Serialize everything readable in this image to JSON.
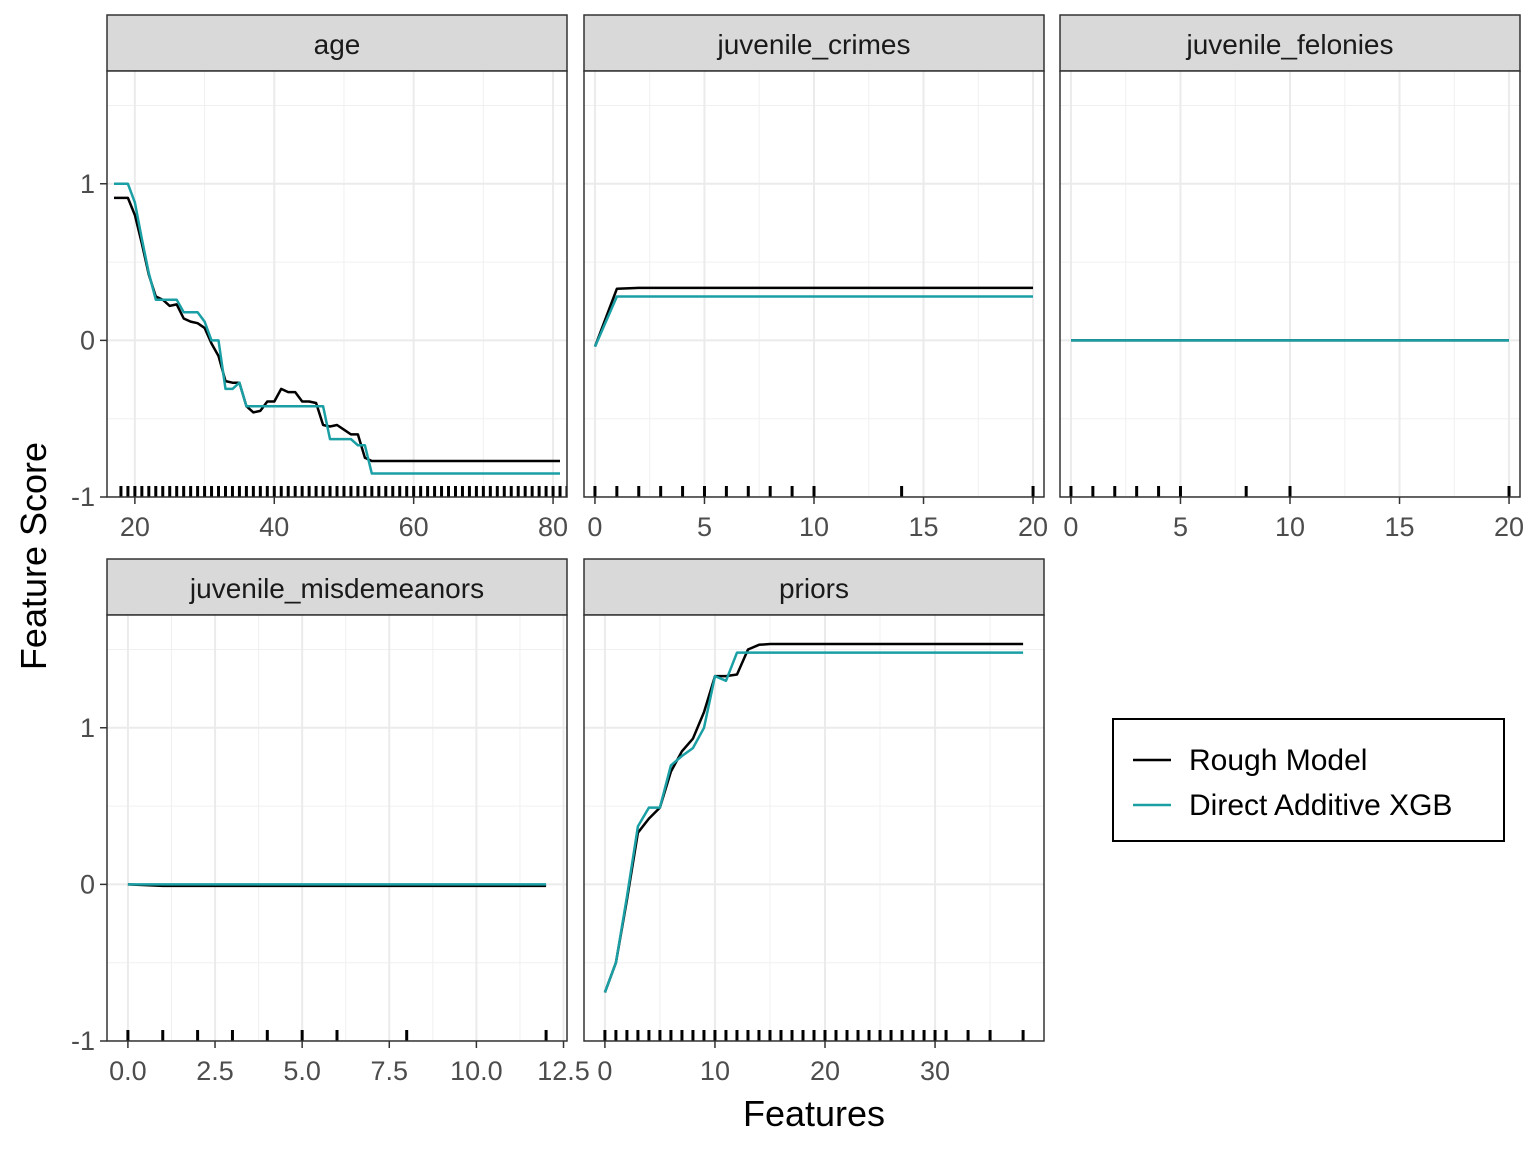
{
  "chart_data": {
    "type": "line",
    "ylabel": "Feature Score",
    "xlabel": "Features",
    "ylim": [
      -1,
      1.72
    ],
    "grid": true,
    "legend": {
      "placement": "right",
      "entries": [
        {
          "name": "Rough Model",
          "color": "#000000"
        },
        {
          "name": "Direct Additive XGB",
          "color": "#1a9fa5"
        }
      ]
    },
    "y_ticks": [
      {
        "value": -1,
        "label": "-1"
      },
      {
        "value": 0,
        "label": "0"
      },
      {
        "value": 1,
        "label": "1"
      }
    ],
    "panels": [
      {
        "title": "age",
        "xlim": [
          16,
          82
        ],
        "x_ticks": [
          {
            "value": 20,
            "label": "20"
          },
          {
            "value": 40,
            "label": "40"
          },
          {
            "value": 60,
            "label": "60"
          },
          {
            "value": 80,
            "label": "80"
          }
        ],
        "rug": [
          18,
          19,
          20,
          21,
          22,
          23,
          24,
          25,
          26,
          27,
          28,
          29,
          30,
          31,
          32,
          33,
          34,
          35,
          36,
          37,
          38,
          39,
          40,
          41,
          42,
          43,
          44,
          45,
          46,
          47,
          48,
          49,
          50,
          51,
          52,
          53,
          54,
          55,
          56,
          57,
          58,
          59,
          60,
          61,
          62,
          63,
          64,
          65,
          66,
          67,
          68,
          69,
          70,
          71,
          72,
          73,
          74,
          75,
          76,
          77,
          78,
          79,
          80,
          81,
          82
        ],
        "series": [
          {
            "name": "Rough Model",
            "x": [
              17,
              19,
              20,
              21,
              22,
              23,
              24,
              25,
              26,
              27,
              28,
              29,
              30,
              31,
              32,
              33,
              34,
              35,
              36,
              37,
              38,
              39,
              40,
              41,
              42,
              43,
              44,
              45,
              46,
              47,
              48,
              49,
              50,
              51,
              52,
              53,
              54,
              55,
              56,
              60,
              70,
              81
            ],
            "y": [
              0.91,
              0.91,
              0.8,
              0.62,
              0.42,
              0.28,
              0.26,
              0.22,
              0.23,
              0.14,
              0.12,
              0.11,
              0.08,
              -0.02,
              -0.1,
              -0.26,
              -0.27,
              -0.27,
              -0.42,
              -0.46,
              -0.45,
              -0.39,
              -0.39,
              -0.31,
              -0.33,
              -0.33,
              -0.39,
              -0.39,
              -0.4,
              -0.54,
              -0.55,
              -0.54,
              -0.57,
              -0.6,
              -0.6,
              -0.75,
              -0.77,
              -0.77,
              -0.77,
              -0.77,
              -0.77,
              -0.77
            ]
          },
          {
            "name": "Direct Additive XGB",
            "x": [
              17,
              19,
              20,
              21,
              22,
              23,
              24,
              25,
              26,
              27,
              28,
              29,
              30,
              31,
              32,
              33,
              34,
              35,
              36,
              37,
              38,
              39,
              40,
              41,
              42,
              43,
              44,
              45,
              46,
              47,
              48,
              49,
              50,
              51,
              52,
              53,
              54,
              55,
              60,
              70,
              81
            ],
            "y": [
              1.0,
              1.0,
              0.88,
              0.65,
              0.43,
              0.26,
              0.26,
              0.26,
              0.26,
              0.18,
              0.18,
              0.18,
              0.12,
              0.0,
              0.0,
              -0.31,
              -0.31,
              -0.27,
              -0.42,
              -0.42,
              -0.42,
              -0.42,
              -0.42,
              -0.42,
              -0.42,
              -0.42,
              -0.42,
              -0.42,
              -0.42,
              -0.42,
              -0.63,
              -0.63,
              -0.63,
              -0.63,
              -0.67,
              -0.67,
              -0.85,
              -0.85,
              -0.85,
              -0.85,
              -0.85
            ]
          }
        ]
      },
      {
        "title": "juvenile_crimes",
        "xlim": [
          -0.5,
          20.5
        ],
        "x_ticks": [
          {
            "value": 0,
            "label": "0"
          },
          {
            "value": 5,
            "label": "5"
          },
          {
            "value": 10,
            "label": "10"
          },
          {
            "value": 15,
            "label": "15"
          },
          {
            "value": 20,
            "label": "20"
          }
        ],
        "rug": [
          0,
          1,
          2,
          3,
          4,
          5,
          6,
          7,
          8,
          9,
          10,
          14,
          20
        ],
        "series": [
          {
            "name": "Rough Model",
            "x": [
              0,
              1,
              2,
              5,
              10,
              20
            ],
            "y": [
              -0.04,
              0.33,
              0.335,
              0.335,
              0.335,
              0.335
            ]
          },
          {
            "name": "Direct Additive XGB",
            "x": [
              0,
              1,
              2,
              5,
              10,
              20
            ],
            "y": [
              -0.04,
              0.28,
              0.28,
              0.28,
              0.28,
              0.28
            ]
          }
        ]
      },
      {
        "title": "juvenile_felonies",
        "xlim": [
          -0.5,
          20.5
        ],
        "x_ticks": [
          {
            "value": 0,
            "label": "0"
          },
          {
            "value": 5,
            "label": "5"
          },
          {
            "value": 10,
            "label": "10"
          },
          {
            "value": 15,
            "label": "15"
          },
          {
            "value": 20,
            "label": "20"
          }
        ],
        "rug": [
          0,
          1,
          2,
          3,
          4,
          5,
          8,
          10,
          20
        ],
        "series": [
          {
            "name": "Rough Model",
            "x": [
              0,
              20
            ],
            "y": [
              0,
              0
            ]
          },
          {
            "name": "Direct Additive XGB",
            "x": [
              0,
              20
            ],
            "y": [
              0,
              0
            ]
          }
        ]
      },
      {
        "title": "juvenile_misdemeanors",
        "xlim": [
          -0.6,
          12.6
        ],
        "x_ticks": [
          {
            "value": 0,
            "label": "0.0"
          },
          {
            "value": 2.5,
            "label": "2.5"
          },
          {
            "value": 5,
            "label": "5.0"
          },
          {
            "value": 7.5,
            "label": "7.5"
          },
          {
            "value": 10,
            "label": "10.0"
          },
          {
            "value": 12.5,
            "label": "12.5"
          }
        ],
        "rug": [
          0,
          1,
          2,
          3,
          4,
          5,
          6,
          8,
          12
        ],
        "series": [
          {
            "name": "Rough Model",
            "x": [
              0,
              1,
              2,
              5,
              12
            ],
            "y": [
              0,
              -0.01,
              -0.01,
              -0.01,
              -0.01
            ]
          },
          {
            "name": "Direct Additive XGB",
            "x": [
              0,
              12
            ],
            "y": [
              0,
              0
            ]
          }
        ]
      },
      {
        "title": "priors",
        "xlim": [
          -1.9,
          39.9
        ],
        "x_ticks": [
          {
            "value": 0,
            "label": "0"
          },
          {
            "value": 10,
            "label": "10"
          },
          {
            "value": 20,
            "label": "20"
          },
          {
            "value": 30,
            "label": "30"
          }
        ],
        "rug": [
          0,
          1,
          2,
          3,
          4,
          5,
          6,
          7,
          8,
          9,
          10,
          11,
          12,
          13,
          14,
          15,
          16,
          17,
          18,
          19,
          20,
          21,
          22,
          23,
          24,
          25,
          26,
          27,
          28,
          29,
          30,
          31,
          33,
          35,
          38
        ],
        "series": [
          {
            "name": "Rough Model",
            "x": [
              0,
              1,
              2,
              3,
              4,
              5,
              6,
              7,
              8,
              9,
              10,
              11,
              12,
              13,
              14,
              15,
              20,
              38
            ],
            "y": [
              -0.69,
              -0.5,
              -0.1,
              0.33,
              0.42,
              0.49,
              0.72,
              0.85,
              0.93,
              1.1,
              1.33,
              1.33,
              1.34,
              1.5,
              1.53,
              1.535,
              1.535,
              1.535
            ]
          },
          {
            "name": "Direct Additive XGB",
            "x": [
              0,
              1,
              2,
              3,
              4,
              5,
              6,
              7,
              8,
              9,
              10,
              11,
              12,
              13,
              15,
              20,
              38
            ],
            "y": [
              -0.69,
              -0.5,
              -0.08,
              0.37,
              0.49,
              0.49,
              0.76,
              0.82,
              0.87,
              1.0,
              1.33,
              1.3,
              1.48,
              1.48,
              1.48,
              1.48,
              1.48
            ]
          }
        ]
      }
    ]
  }
}
